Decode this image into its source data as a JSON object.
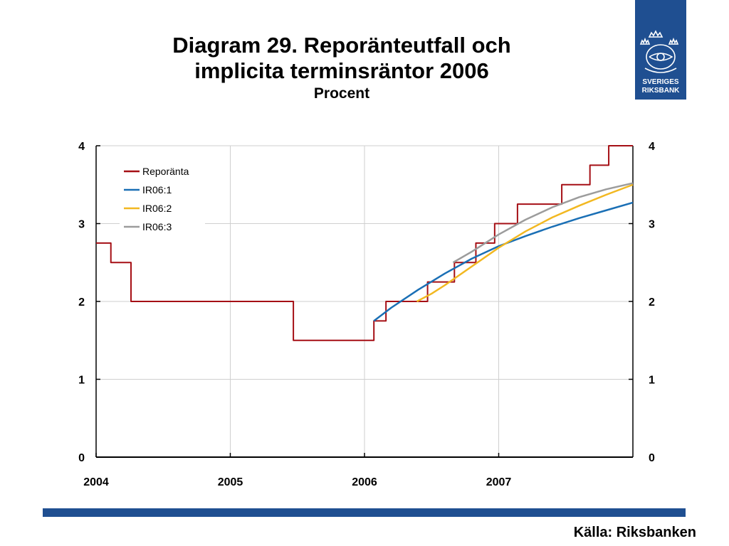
{
  "title": {
    "line1": "Diagram 29. Reporänteutfall och",
    "line2": "implicita terminsräntor 2006",
    "subtitle": "Procent"
  },
  "logo": {
    "line1": "SVERIGES",
    "line2": "RIKSBANK"
  },
  "source": "Källa: Riksbanken",
  "colors": {
    "brand": "#1f4f91"
  },
  "chart_data": {
    "type": "line",
    "title": "Diagram 29. Reporänteutfall och implicita terminsräntor 2006",
    "subtitle": "Procent",
    "xlim": [
      2004.0,
      2008.0
    ],
    "ylim": [
      0,
      4
    ],
    "x_ticks": [
      2004,
      2005,
      2006,
      2007
    ],
    "x_tick_labels": [
      "2004",
      "2005",
      "2006",
      "2007"
    ],
    "y_ticks": [
      0,
      1,
      2,
      3,
      4
    ],
    "y_tick_labels": [
      "0",
      "1",
      "2",
      "3",
      "4"
    ],
    "grid": true,
    "legend_position": "top-left",
    "series": [
      {
        "name": "Reporänta",
        "color": "#a50f15",
        "step": true,
        "x": [
          2004.0,
          2004.11,
          2004.26,
          2005.47,
          2006.07,
          2006.16,
          2006.47,
          2006.67,
          2006.83,
          2006.97,
          2007.14,
          2007.47,
          2007.68,
          2007.82,
          2008.0
        ],
        "y": [
          2.75,
          2.5,
          2.0,
          1.5,
          1.75,
          2.0,
          2.25,
          2.5,
          2.75,
          3.0,
          3.25,
          3.5,
          3.75,
          4.0,
          4.0
        ]
      },
      {
        "name": "IR06:1",
        "color": "#1a6fb5",
        "x": [
          2006.07,
          2006.2,
          2006.4,
          2006.6,
          2006.8,
          2007.0,
          2007.2,
          2007.4,
          2007.6,
          2007.8,
          2008.0
        ],
        "y": [
          1.75,
          1.92,
          2.15,
          2.36,
          2.55,
          2.71,
          2.84,
          2.96,
          3.07,
          3.17,
          3.27
        ]
      },
      {
        "name": "IR06:2",
        "color": "#f2b821",
        "x": [
          2006.39,
          2006.5,
          2006.6,
          2006.8,
          2007.0,
          2007.2,
          2007.4,
          2007.6,
          2007.8,
          2008.0
        ],
        "y": [
          2.0,
          2.1,
          2.21,
          2.45,
          2.69,
          2.9,
          3.08,
          3.23,
          3.37,
          3.5
        ]
      },
      {
        "name": "IR06:3",
        "color": "#9c9c9c",
        "x": [
          2006.66,
          2006.8,
          2007.0,
          2007.2,
          2007.4,
          2007.6,
          2007.8,
          2008.0
        ],
        "y": [
          2.5,
          2.64,
          2.86,
          3.05,
          3.21,
          3.34,
          3.44,
          3.52
        ]
      }
    ]
  }
}
